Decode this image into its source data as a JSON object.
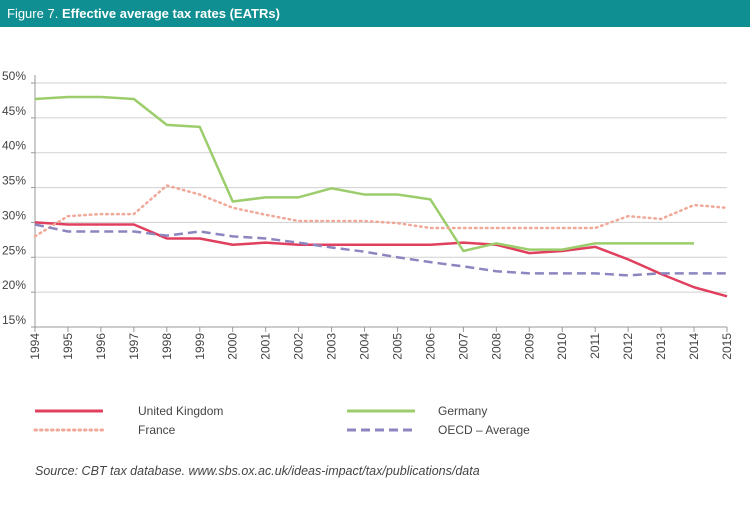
{
  "chart_data": {
    "type": "line",
    "figure_label": "Figure 7.",
    "title": "Effective average tax rates (EATRs)",
    "source": "Source: CBT tax database. www.sbs.ox.ac.uk/ideas-impact/tax/publications/data",
    "x": [
      1994,
      1995,
      1996,
      1997,
      1998,
      1999,
      2000,
      2001,
      2002,
      2003,
      2004,
      2005,
      2006,
      2007,
      2008,
      2009,
      2010,
      2011,
      2012,
      2013,
      2014,
      2015
    ],
    "xlim": [
      1994,
      2015
    ],
    "xticks": [
      1994,
      1995,
      1996,
      1997,
      1998,
      1999,
      2000,
      2001,
      2002,
      2003,
      2004,
      2005,
      2006,
      2007,
      2008,
      2009,
      2010,
      2011,
      2012,
      2013,
      2014,
      2015
    ],
    "ylim": [
      15,
      50
    ],
    "yticks": [
      {
        "value": 15,
        "label": "15%"
      },
      {
        "value": 20,
        "label": "20%"
      },
      {
        "value": 25,
        "label": "25%"
      },
      {
        "value": 30,
        "label": "30%"
      },
      {
        "value": 35,
        "label": "35%"
      },
      {
        "value": 40,
        "label": "40%"
      },
      {
        "value": 45,
        "label": "45%"
      },
      {
        "value": 50,
        "label": "50%"
      }
    ],
    "grid": true,
    "series": [
      {
        "name": "United Kingdom",
        "color": "#e0405e",
        "dash": "solid",
        "values": [
          30.0,
          29.7,
          29.7,
          29.7,
          27.7,
          27.7,
          26.8,
          27.1,
          26.8,
          26.8,
          26.8,
          26.8,
          26.8,
          27.1,
          26.8,
          25.6,
          25.9,
          26.5,
          24.7,
          22.6,
          20.7,
          19.4
        ]
      },
      {
        "name": "Germany",
        "color": "#9ccd6c",
        "dash": "solid",
        "values": [
          47.7,
          48.0,
          48.0,
          47.7,
          44.0,
          43.7,
          33.0,
          33.6,
          33.6,
          34.9,
          34.0,
          34.0,
          33.3,
          25.9,
          27.0,
          26.1,
          26.1,
          27.0,
          27.0,
          27.0,
          27.0,
          null
        ]
      },
      {
        "name": "France",
        "color": "#f0a898",
        "dash": "dotted",
        "values": [
          28.0,
          30.9,
          31.2,
          31.2,
          35.3,
          34.0,
          32.1,
          31.1,
          30.2,
          30.2,
          30.2,
          29.9,
          29.2,
          29.2,
          29.2,
          29.2,
          29.2,
          29.2,
          30.9,
          30.5,
          32.5,
          32.1
        ]
      },
      {
        "name": "OECD – Average",
        "color": "#8c86c0",
        "dash": "dashed",
        "values": [
          29.7,
          28.7,
          28.7,
          28.7,
          28.1,
          28.7,
          28.0,
          27.7,
          27.1,
          26.4,
          25.8,
          25.0,
          24.3,
          23.7,
          23.0,
          22.7,
          22.7,
          22.7,
          22.4,
          22.7,
          22.7,
          22.7
        ]
      }
    ]
  }
}
